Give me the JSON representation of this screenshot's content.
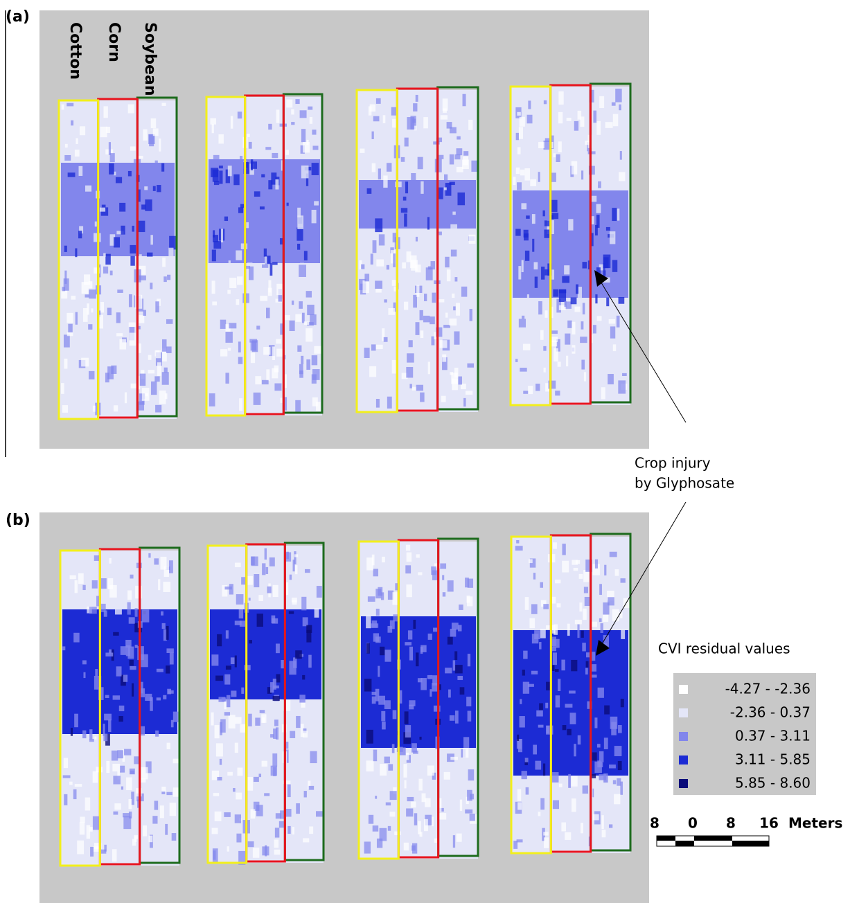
{
  "panels": [
    {
      "label": "(a)",
      "crops": [
        "Cotton",
        "Corn",
        "Soybean"
      ]
    },
    {
      "label": "(b)"
    }
  ],
  "annotation": {
    "lines": [
      "Crop injury",
      "by Glyphosate"
    ]
  },
  "legend": {
    "title": "CVI residual values",
    "items": [
      {
        "label": "-4.27 - -2.36",
        "color": "#ffffff"
      },
      {
        "label": "-2.36 - 0.37",
        "color": "#e4e6f8"
      },
      {
        "label": "0.37 - 3.11",
        "color": "#8286ec"
      },
      {
        "label": "3.11 - 5.85",
        "color": "#1c2bd4"
      },
      {
        "label": "5.85 - 8.60",
        "color": "#0b0c7a"
      }
    ]
  },
  "scale_bar": {
    "ticks": [
      "8",
      "0",
      "8",
      "16"
    ],
    "unit": "Meters"
  }
}
